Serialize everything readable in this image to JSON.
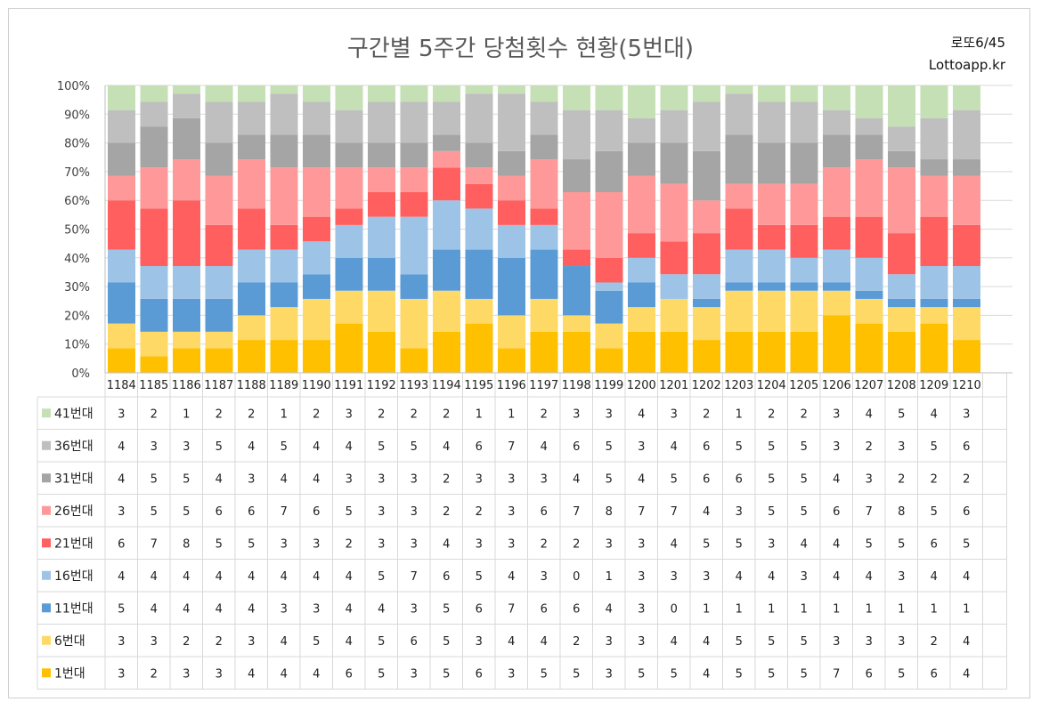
{
  "title": "구간별 5주간 당첨횟수 현황(5번대)",
  "brand": {
    "game": "로또6/45",
    "site": "Lottoapp.kr"
  },
  "chart_data": {
    "type": "bar",
    "stacked": "percent",
    "title": "구간별 5주간 당첨횟수 현황(5번대)",
    "xlabel": "",
    "ylabel": "",
    "ylim": [
      0,
      100
    ],
    "y_ticks": [
      "0%",
      "10%",
      "20%",
      "30%",
      "40%",
      "50%",
      "60%",
      "70%",
      "80%",
      "90%",
      "100%"
    ],
    "grid": true,
    "categories": [
      "1184",
      "1185",
      "1186",
      "1187",
      "1188",
      "1189",
      "1190",
      "1191",
      "1192",
      "1193",
      "1194",
      "1195",
      "1196",
      "1197",
      "1198",
      "1199",
      "1200",
      "1201",
      "1202",
      "1203",
      "1204",
      "1205",
      "1206",
      "1207",
      "1208",
      "1209",
      "1210"
    ],
    "series": [
      {
        "name": "1번대",
        "color": "#FFC000",
        "values": [
          3,
          2,
          3,
          3,
          4,
          4,
          4,
          6,
          5,
          3,
          5,
          6,
          3,
          5,
          5,
          3,
          5,
          5,
          4,
          5,
          5,
          5,
          7,
          6,
          5,
          6,
          4
        ]
      },
      {
        "name": "6번대",
        "color": "#FFD966",
        "values": [
          3,
          3,
          2,
          2,
          3,
          4,
          5,
          4,
          5,
          6,
          5,
          3,
          4,
          4,
          2,
          3,
          3,
          4,
          4,
          5,
          5,
          5,
          3,
          3,
          3,
          2,
          4
        ]
      },
      {
        "name": "11번대",
        "color": "#5B9BD5",
        "values": [
          5,
          4,
          4,
          4,
          4,
          3,
          3,
          4,
          4,
          3,
          5,
          6,
          7,
          6,
          6,
          4,
          3,
          0,
          1,
          1,
          1,
          1,
          1,
          1,
          1,
          1,
          1
        ]
      },
      {
        "name": "16번대",
        "color": "#9DC3E6",
        "values": [
          4,
          4,
          4,
          4,
          4,
          4,
          4,
          4,
          5,
          7,
          6,
          5,
          4,
          3,
          0,
          1,
          3,
          3,
          3,
          4,
          4,
          3,
          4,
          4,
          3,
          4,
          4
        ]
      },
      {
        "name": "21번대",
        "color": "#FF5F5F",
        "values": [
          6,
          7,
          8,
          5,
          5,
          3,
          3,
          2,
          3,
          3,
          4,
          3,
          3,
          2,
          2,
          3,
          3,
          4,
          5,
          5,
          3,
          4,
          4,
          5,
          5,
          6,
          5
        ]
      },
      {
        "name": "26번대",
        "color": "#FF9999",
        "values": [
          3,
          5,
          5,
          6,
          6,
          7,
          6,
          5,
          3,
          3,
          2,
          2,
          3,
          6,
          7,
          8,
          7,
          7,
          4,
          3,
          5,
          5,
          6,
          7,
          8,
          5,
          6
        ]
      },
      {
        "name": "31번대",
        "color": "#A5A5A5",
        "values": [
          4,
          5,
          5,
          4,
          3,
          4,
          4,
          3,
          3,
          3,
          2,
          3,
          3,
          3,
          4,
          5,
          4,
          5,
          6,
          6,
          5,
          5,
          4,
          3,
          2,
          2,
          2
        ]
      },
      {
        "name": "36번대",
        "color": "#BFBFBF",
        "values": [
          4,
          3,
          3,
          5,
          4,
          5,
          4,
          4,
          5,
          5,
          4,
          6,
          7,
          4,
          6,
          5,
          3,
          4,
          6,
          5,
          5,
          5,
          3,
          2,
          3,
          5,
          6
        ]
      },
      {
        "name": "41번대",
        "color": "#C5E0B4",
        "values": [
          3,
          2,
          1,
          2,
          2,
          1,
          2,
          3,
          2,
          2,
          2,
          1,
          1,
          2,
          3,
          3,
          4,
          3,
          2,
          1,
          2,
          2,
          3,
          4,
          5,
          4,
          3
        ]
      }
    ]
  }
}
